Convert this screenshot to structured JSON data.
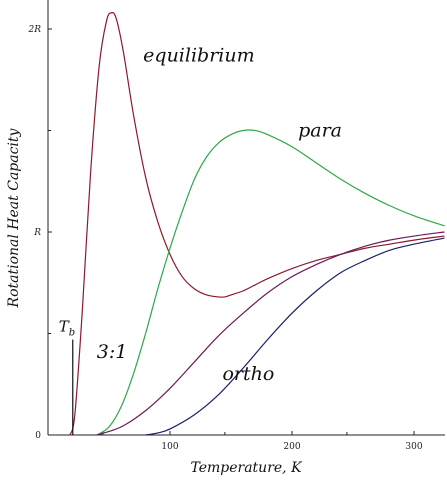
{
  "chart_data": {
    "type": "line",
    "title": "",
    "xlabel": "Temperature, K",
    "ylabel": "Rotational Heat Capacity",
    "xlim": [
      0,
      325
    ],
    "ylim": [
      0,
      2.1
    ],
    "x_ticks": [
      {
        "value": 100,
        "label": "100"
      },
      {
        "value": 200,
        "label": "200"
      },
      {
        "value": 300,
        "label": "300"
      }
    ],
    "y_ticks": [
      {
        "value": 0,
        "label": "0"
      },
      {
        "value": 1,
        "label": "R"
      },
      {
        "value": 2,
        "label": "2R"
      }
    ],
    "grid": false,
    "annotation": {
      "label": "T",
      "subscript": "b",
      "x": 20.3
    },
    "series": [
      {
        "name": "equilibrium",
        "color": "#8b1a2b",
        "x": [
          18,
          22,
          28,
          35,
          42,
          48,
          52,
          56,
          62,
          70,
          80,
          90,
          100,
          110,
          120,
          130,
          140,
          145,
          150,
          160,
          170,
          180,
          200,
          220,
          240,
          260,
          280,
          300,
          325
        ],
        "y": [
          0.0,
          0.1,
          0.6,
          1.3,
          1.82,
          2.04,
          2.08,
          2.05,
          1.88,
          1.58,
          1.27,
          1.05,
          0.89,
          0.78,
          0.72,
          0.69,
          0.68,
          0.68,
          0.69,
          0.71,
          0.74,
          0.77,
          0.82,
          0.86,
          0.89,
          0.92,
          0.94,
          0.96,
          0.98
        ]
      },
      {
        "name": "para",
        "color": "#2ea84a",
        "x": [
          40,
          50,
          60,
          70,
          80,
          90,
          100,
          110,
          120,
          130,
          140,
          150,
          160,
          170,
          180,
          200,
          220,
          240,
          260,
          280,
          300,
          325
        ],
        "y": [
          0.0,
          0.04,
          0.14,
          0.3,
          0.5,
          0.72,
          0.92,
          1.1,
          1.26,
          1.37,
          1.44,
          1.48,
          1.5,
          1.5,
          1.48,
          1.42,
          1.34,
          1.26,
          1.19,
          1.13,
          1.08,
          1.03
        ]
      },
      {
        "name": "3:1",
        "color": "#6a1a5c",
        "x": [
          40,
          60,
          80,
          100,
          120,
          140,
          160,
          180,
          200,
          220,
          240,
          260,
          280,
          300,
          325
        ],
        "y": [
          0.0,
          0.04,
          0.12,
          0.23,
          0.36,
          0.49,
          0.6,
          0.7,
          0.78,
          0.84,
          0.89,
          0.93,
          0.96,
          0.98,
          1.0
        ]
      },
      {
        "name": "ortho",
        "color": "#1a1f6b",
        "x": [
          80,
          90,
          100,
          120,
          140,
          160,
          180,
          200,
          220,
          240,
          260,
          280,
          300,
          325
        ],
        "y": [
          0.0,
          0.01,
          0.03,
          0.1,
          0.2,
          0.33,
          0.47,
          0.6,
          0.71,
          0.8,
          0.86,
          0.91,
          0.94,
          0.97
        ]
      }
    ],
    "labels": [
      {
        "series": "equilibrium",
        "text": "equilibrium",
        "x": 78,
        "y": 1.84
      },
      {
        "series": "para",
        "text": "para",
        "x": 205,
        "y": 1.47
      },
      {
        "series": "3:1",
        "text": "3:1",
        "x": 40,
        "y": 0.38
      },
      {
        "series": "ortho",
        "text": "ortho",
        "x": 143,
        "y": 0.27
      }
    ]
  }
}
